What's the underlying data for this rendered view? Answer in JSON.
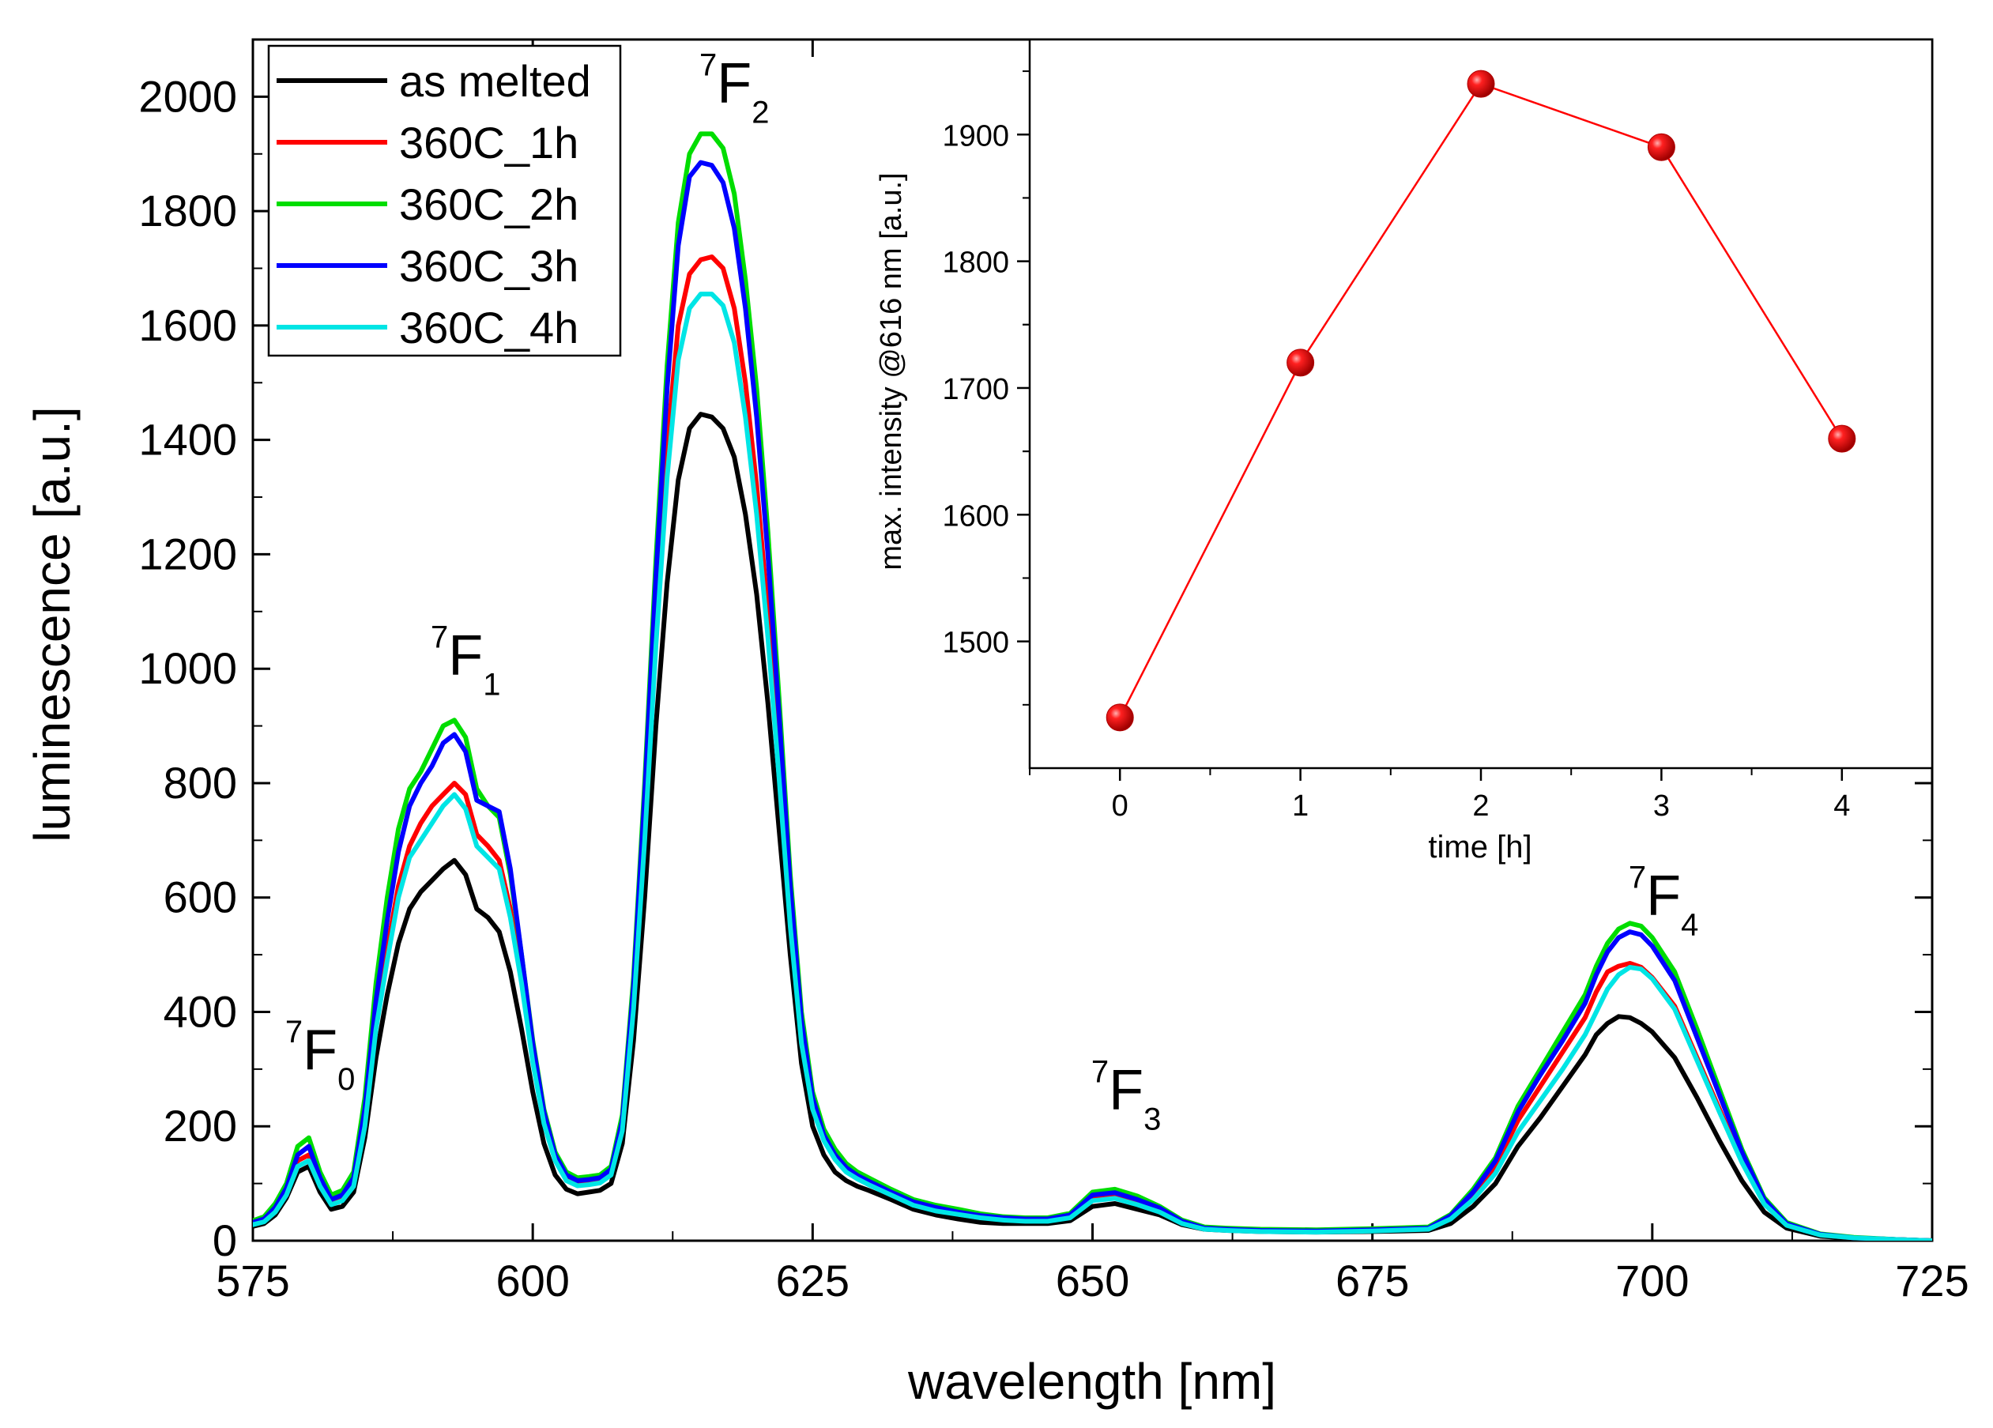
{
  "chart_data": [
    {
      "type": "line",
      "title": "",
      "xlabel": "wavelength [nm]",
      "ylabel": "luminescence [a.u.]",
      "xlim": [
        575,
        725
      ],
      "ylim": [
        0,
        2100
      ],
      "xticks": [
        575,
        600,
        625,
        650,
        675,
        700,
        725
      ],
      "yticks": [
        0,
        200,
        400,
        600,
        800,
        1000,
        1200,
        1400,
        1600,
        1800,
        2000
      ],
      "x": [
        575,
        576,
        577,
        578,
        579,
        580,
        581,
        582,
        583,
        584,
        585,
        586,
        587,
        588,
        589,
        590,
        591,
        592,
        593,
        594,
        595,
        596,
        597,
        598,
        599,
        600,
        601,
        602,
        603,
        604,
        605,
        606,
        607,
        608,
        609,
        610,
        611,
        612,
        613,
        614,
        615,
        616,
        617,
        618,
        619,
        620,
        621,
        622,
        623,
        624,
        625,
        626,
        627,
        628,
        629,
        630,
        632,
        634,
        636,
        638,
        640,
        642,
        644,
        646,
        648,
        650,
        652,
        654,
        656,
        658,
        660,
        662,
        665,
        670,
        675,
        680,
        682,
        684,
        686,
        688,
        690,
        692,
        694,
        695,
        696,
        697,
        698,
        699,
        700,
        702,
        704,
        706,
        708,
        710,
        712,
        715,
        718,
        722,
        725
      ],
      "legend_position": "top-left",
      "series": [
        {
          "name": "as melted",
          "color": "#000000",
          "values": [
            25,
            30,
            45,
            75,
            120,
            130,
            85,
            55,
            60,
            85,
            180,
            320,
            430,
            520,
            580,
            610,
            630,
            650,
            665,
            640,
            580,
            565,
            540,
            470,
            370,
            260,
            170,
            115,
            90,
            82,
            85,
            88,
            100,
            170,
            350,
            600,
            900,
            1150,
            1330,
            1420,
            1445,
            1440,
            1420,
            1370,
            1270,
            1130,
            940,
            720,
            500,
            310,
            200,
            150,
            120,
            105,
            95,
            88,
            72,
            55,
            45,
            38,
            32,
            30,
            30,
            30,
            35,
            60,
            65,
            55,
            45,
            28,
            20,
            18,
            16,
            15,
            16,
            18,
            30,
            60,
            100,
            165,
            215,
            270,
            325,
            360,
            380,
            392,
            390,
            380,
            365,
            320,
            250,
            175,
            105,
            50,
            22,
            8,
            4,
            2,
            0
          ]
        },
        {
          "name": "360C_1h",
          "color": "#ff0000",
          "values": [
            30,
            35,
            55,
            85,
            140,
            150,
            100,
            68,
            75,
            100,
            210,
            390,
            510,
            620,
            690,
            730,
            760,
            780,
            800,
            780,
            710,
            690,
            665,
            580,
            460,
            320,
            210,
            145,
            110,
            100,
            102,
            105,
            120,
            200,
            420,
            730,
            1080,
            1390,
            1600,
            1690,
            1715,
            1720,
            1700,
            1630,
            1500,
            1320,
            1100,
            840,
            570,
            360,
            240,
            185,
            150,
            128,
            115,
            105,
            86,
            67,
            57,
            50,
            42,
            38,
            36,
            36,
            42,
            75,
            80,
            68,
            55,
            32,
            22,
            20,
            18,
            17,
            19,
            22,
            42,
            80,
            130,
            210,
            270,
            330,
            390,
            435,
            470,
            480,
            485,
            478,
            460,
            410,
            320,
            230,
            140,
            65,
            28,
            10,
            5,
            2,
            0
          ]
        },
        {
          "name": "360C_2h",
          "color": "#00dd00",
          "values": [
            35,
            42,
            65,
            100,
            165,
            180,
            120,
            80,
            88,
            120,
            250,
            450,
            600,
            720,
            790,
            820,
            860,
            900,
            910,
            880,
            790,
            760,
            740,
            640,
            500,
            350,
            230,
            155,
            120,
            110,
            112,
            115,
            130,
            220,
            460,
            800,
            1190,
            1530,
            1780,
            1900,
            1935,
            1935,
            1910,
            1830,
            1680,
            1490,
            1240,
            950,
            640,
            400,
            260,
            195,
            160,
            135,
            120,
            110,
            90,
            72,
            62,
            55,
            47,
            42,
            40,
            40,
            48,
            85,
            90,
            78,
            60,
            36,
            24,
            22,
            20,
            19,
            21,
            24,
            46,
            90,
            145,
            235,
            300,
            365,
            430,
            480,
            520,
            545,
            555,
            550,
            530,
            470,
            370,
            265,
            160,
            75,
            32,
            12,
            6,
            2,
            0
          ]
        },
        {
          "name": "360C_3h",
          "color": "#0000ff",
          "values": [
            32,
            38,
            58,
            92,
            150,
            165,
            110,
            72,
            80,
            110,
            230,
            420,
            560,
            680,
            760,
            800,
            830,
            870,
            885,
            855,
            770,
            760,
            750,
            650,
            500,
            345,
            225,
            150,
            115,
            105,
            107,
            110,
            125,
            210,
            445,
            780,
            1160,
            1490,
            1740,
            1860,
            1885,
            1880,
            1850,
            1770,
            1630,
            1440,
            1200,
            920,
            620,
            385,
            250,
            185,
            150,
            128,
            114,
            104,
            85,
            68,
            58,
            50,
            44,
            40,
            38,
            38,
            45,
            80,
            84,
            72,
            57,
            34,
            22,
            20,
            18,
            17,
            19,
            22,
            44,
            85,
            140,
            225,
            290,
            350,
            415,
            465,
            505,
            530,
            540,
            535,
            515,
            455,
            355,
            255,
            155,
            72,
            30,
            11,
            5,
            2,
            0
          ]
        },
        {
          "name": "360C_4h",
          "color": "#00e5e5",
          "values": [
            28,
            33,
            50,
            80,
            130,
            140,
            95,
            63,
            70,
            95,
            200,
            370,
            490,
            600,
            670,
            700,
            730,
            760,
            780,
            755,
            690,
            670,
            650,
            565,
            450,
            312,
            205,
            140,
            105,
            96,
            98,
            101,
            115,
            192,
            405,
            700,
            1040,
            1335,
            1540,
            1630,
            1655,
            1655,
            1635,
            1570,
            1440,
            1270,
            1055,
            810,
            550,
            345,
            230,
            175,
            142,
            120,
            108,
            98,
            80,
            62,
            52,
            46,
            40,
            36,
            34,
            34,
            40,
            70,
            74,
            63,
            50,
            30,
            20,
            18,
            16,
            15,
            17,
            20,
            38,
            72,
            118,
            190,
            245,
            300,
            360,
            400,
            440,
            465,
            478,
            475,
            458,
            405,
            315,
            225,
            137,
            64,
            27,
            10,
            5,
            2,
            0
          ]
        }
      ],
      "annotations": [
        {
          "level": "7",
          "symbol": "F",
          "index": "0",
          "x": 580,
          "y": 300
        },
        {
          "level": "7",
          "symbol": "F",
          "index": "1",
          "x": 593,
          "y": 990
        },
        {
          "level": "7",
          "symbol": "F",
          "index": "2",
          "x": 617,
          "y": 1990
        },
        {
          "level": "7",
          "symbol": "F",
          "index": "3",
          "x": 652,
          "y": 230
        },
        {
          "level": "7",
          "symbol": "F",
          "index": "4",
          "x": 700,
          "y": 570
        }
      ]
    },
    {
      "type": "line",
      "title": "",
      "xlabel": "time [h]",
      "ylabel": "max. intensity @616 nm [a.u.]",
      "xlim": [
        -0.5,
        4.5
      ],
      "ylim": [
        1400,
        1975
      ],
      "xticks": [
        0,
        1,
        2,
        3,
        4
      ],
      "yticks": [
        1500,
        1600,
        1700,
        1800,
        1900
      ],
      "marker": "sphere",
      "color": "#ff0000",
      "x": [
        0,
        1,
        2,
        3,
        4
      ],
      "values": [
        1440,
        1720,
        1940,
        1890,
        1660
      ]
    }
  ]
}
